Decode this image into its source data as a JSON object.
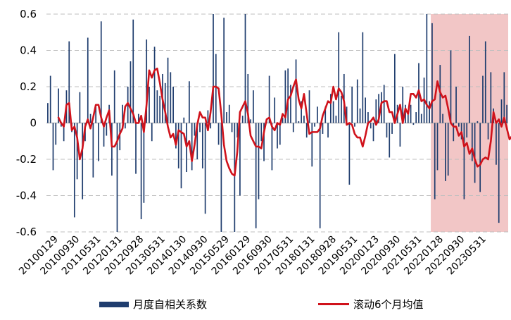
{
  "chart_data": {
    "type": "bar",
    "xlabel": "",
    "ylabel": "",
    "ylim": [
      -0.6,
      0.6
    ],
    "yticks": [
      0.6,
      0.4,
      0.2,
      0,
      -0.2,
      -0.4,
      -0.6
    ],
    "ytick_labels": [
      "0.6",
      "0.4",
      "0.2",
      "0",
      "-0.2",
      "-0.4",
      "-0.6"
    ],
    "xtick_labels": [
      "20100129",
      "20100930",
      "20110531",
      "20120131",
      "20120928",
      "20130531",
      "20140130",
      "20140930",
      "20150529",
      "20160129",
      "20160930",
      "20170531",
      "20180131",
      "20180928",
      "20190531",
      "20200123",
      "20200930",
      "20210531",
      "20220128",
      "20220930",
      "20230531"
    ],
    "grid": "horizontal-dashed",
    "legend_position": "bottom",
    "highlight_region": {
      "from_month_index": 144,
      "to_month_index": 172,
      "color": "#F2C6C6"
    },
    "colors": {
      "bar": "#1F3D6E",
      "line": "#D0121B",
      "highlight": "#F2C6C6",
      "grid": "#BFBFBF"
    },
    "series": [
      {
        "name": "月度自相关系数",
        "kind": "bar",
        "values": [
          0.11,
          0.26,
          -0.26,
          -0.12,
          0.19,
          -0.02,
          -0.1,
          0.18,
          0.45,
          -0.05,
          -0.52,
          -0.31,
          0.17,
          -0.42,
          -0.1,
          0.47,
          0.05,
          -0.3,
          0.1,
          -0.21,
          0.56,
          -0.13,
          -0.07,
          0.1,
          -0.29,
          0.29,
          -0.6,
          -0.15,
          0.1,
          -0.03,
          0.2,
          0.34,
          0.57,
          -0.28,
          0.05,
          -0.53,
          -0.44,
          0.46,
          0.2,
          -0.1,
          0.42,
          0.18,
          0.15,
          0.27,
          0.22,
          0.36,
          0.28,
          0.2,
          -0.14,
          -0.25,
          -0.36,
          0.03,
          -0.27,
          0.23,
          -0.26,
          -0.07,
          -0.2,
          -0.05,
          -0.25,
          -0.5,
          0.07,
          -0.03,
          0.6,
          0.38,
          -0.12,
          -0.6,
          0.58,
          0.06,
          0.1,
          -0.05,
          -0.6,
          -0.08,
          -0.4,
          0.04,
          0.6,
          0.27,
          0.02,
          0.18,
          -0.58,
          -0.42,
          -0.1,
          -0.21,
          0.02,
          0.26,
          -0.26,
          0.14,
          -0.14,
          -0.12,
          0.03,
          0.29,
          0.3,
          0.21,
          -0.05,
          0.35,
          0.01,
          0.12,
          0.04,
          -0.08,
          0.18,
          -0.24,
          -0.02,
          0.09,
          -0.58,
          -0.06,
          0.09,
          -0.08,
          0.16,
          0.12,
          0.04,
          0.5,
          0.15,
          0.27,
          0.09,
          -0.34,
          0.2,
          -0.02,
          0.24,
          0.08,
          0.5,
          0.14,
          0.06,
          -0.03,
          -0.1,
          0.13,
          0.16,
          0.17,
          0.21,
          -0.08,
          -0.19,
          -0.06,
          0.38,
          0.1,
          -0.13,
          0.2,
          0.1,
          0.05,
          0.1,
          -0.01,
          0.06,
          0.33,
          0.05,
          0.25,
          0.6,
          0.12,
          0.55,
          -0.42,
          -0.26,
          0.32,
          0.05,
          -0.32,
          -0.29,
          0.4,
          -0.1,
          0.2,
          -0.02,
          -0.09,
          -0.42,
          -0.08,
          0.48,
          -0.21,
          -0.33,
          0.01,
          -0.38,
          0.26,
          0.45,
          -0.09,
          0.28,
          0.08,
          -0.23,
          -0.55,
          0.13,
          0.28,
          0.1
        ]
      },
      {
        "name": "滚动6个月均值",
        "kind": "line",
        "start_index": 4,
        "values": [
          0.03,
          0.0,
          -0.02,
          0.1,
          0.11,
          -0.04,
          -0.02,
          -0.08,
          -0.2,
          -0.14,
          -0.02,
          0.02,
          -0.03,
          0.03,
          0.1,
          0.1,
          0.03,
          -0.02,
          0.03,
          0.07,
          -0.13,
          -0.13,
          -0.1,
          -0.06,
          -0.03,
          0.09,
          0.11,
          0.08,
          0.05,
          0.0,
          0.0,
          0.04,
          -0.05,
          0.1,
          0.29,
          0.25,
          0.29,
          0.3,
          0.22,
          0.13,
          0.06,
          -0.02,
          -0.08,
          -0.06,
          -0.12,
          -0.04,
          -0.05,
          -0.06,
          -0.13,
          -0.1,
          -0.21,
          -0.12,
          -0.01,
          0.06,
          0.03,
          0.03,
          -0.04,
          0.06,
          0.2,
          0.2,
          0.19,
          0.05,
          -0.12,
          -0.21,
          -0.25,
          -0.28,
          -0.29,
          -0.16,
          0.06,
          0.09,
          0.12,
          0.05,
          -0.07,
          -0.1,
          -0.13,
          -0.13,
          -0.14,
          -0.05,
          0.02,
          0.03,
          -0.02,
          -0.04,
          0.0,
          -0.01,
          0.05,
          0.03,
          0.13,
          0.15,
          0.2,
          0.24,
          0.13,
          0.08,
          0.16,
          0.05,
          -0.06,
          -0.05,
          -0.05,
          -0.05,
          -0.03,
          0.04,
          0.08,
          0.12,
          0.11,
          0.2,
          0.13,
          0.19,
          0.17,
          0.12,
          -0.01,
          0.0,
          -0.01,
          -0.06,
          -0.08,
          -0.08,
          -0.13,
          -0.07,
          0.0,
          0.01,
          0.03,
          -0.01,
          0.02,
          0.11,
          0.12,
          0.12,
          0.06,
          0.06,
          0.0,
          0.05,
          0.1,
          0.0,
          0.08,
          0.05,
          0.16,
          0.16,
          0.14,
          0.18,
          0.12,
          0.13,
          0.1,
          0.08,
          0.12,
          0.13,
          0.23,
          0.17,
          0.14,
          0.15,
          0.08,
          0.0,
          -0.02,
          -0.02,
          -0.07,
          -0.05,
          -0.13,
          -0.11,
          -0.17,
          -0.14,
          -0.2,
          -0.24,
          -0.23,
          -0.2,
          -0.19,
          -0.2,
          -0.1,
          0.06,
          0.0,
          0.02,
          -0.02,
          0.03,
          -0.03,
          -0.09,
          -0.07,
          -0.06
        ]
      }
    ]
  }
}
